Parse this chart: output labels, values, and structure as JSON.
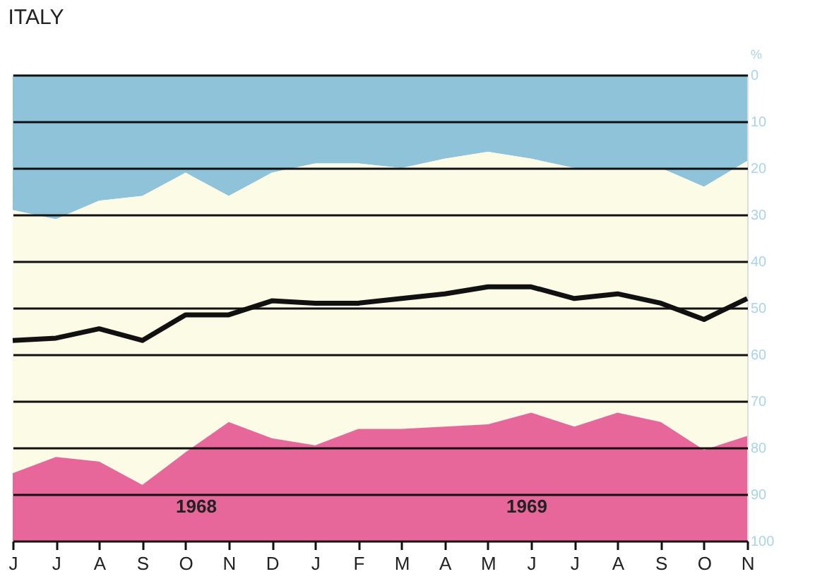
{
  "chart_data": {
    "type": "area",
    "title": "ITALY",
    "ylabel": "%",
    "stacked": true,
    "categories": [
      "J",
      "J",
      "A",
      "S",
      "O",
      "N",
      "D",
      "J",
      "F",
      "M",
      "A",
      "M",
      "J",
      "J",
      "A",
      "S",
      "O",
      "N"
    ],
    "series": [
      {
        "color": "#8ec3da",
        "values": [
          29,
          31,
          27,
          26,
          21,
          26,
          21,
          19,
          19,
          20,
          18,
          16.5,
          18,
          20,
          20,
          20,
          24,
          18.5
        ]
      },
      {
        "color": "#fbfbe6",
        "values": [
          56.5,
          51,
          56,
          62,
          60,
          48.5,
          57,
          60.5,
          57,
          56,
          57.5,
          58.5,
          54.5,
          55.5,
          52.5,
          54.5,
          56.5,
          59
        ]
      },
      {
        "color": "#e8679a",
        "values": [
          14.5,
          18,
          17,
          12,
          19,
          25.5,
          22,
          20.5,
          24,
          24,
          24.5,
          25,
          27.5,
          24.5,
          27.5,
          25.5,
          19.5,
          22.5
        ]
      },
      {
        "type": "line",
        "color": "#111111",
        "values": [
          57,
          56.5,
          54.5,
          57,
          51.5,
          51.5,
          48.5,
          49,
          49,
          48,
          47,
          45.5,
          45.5,
          48,
          47,
          49,
          52.5,
          48
        ]
      }
    ],
    "ylim": [
      100,
      0
    ],
    "yticks": [
      0,
      10,
      20,
      30,
      40,
      50,
      60,
      70,
      80,
      90,
      100
    ],
    "grid": "y",
    "legend": false,
    "annotations": [
      "1968",
      "1969"
    ]
  }
}
